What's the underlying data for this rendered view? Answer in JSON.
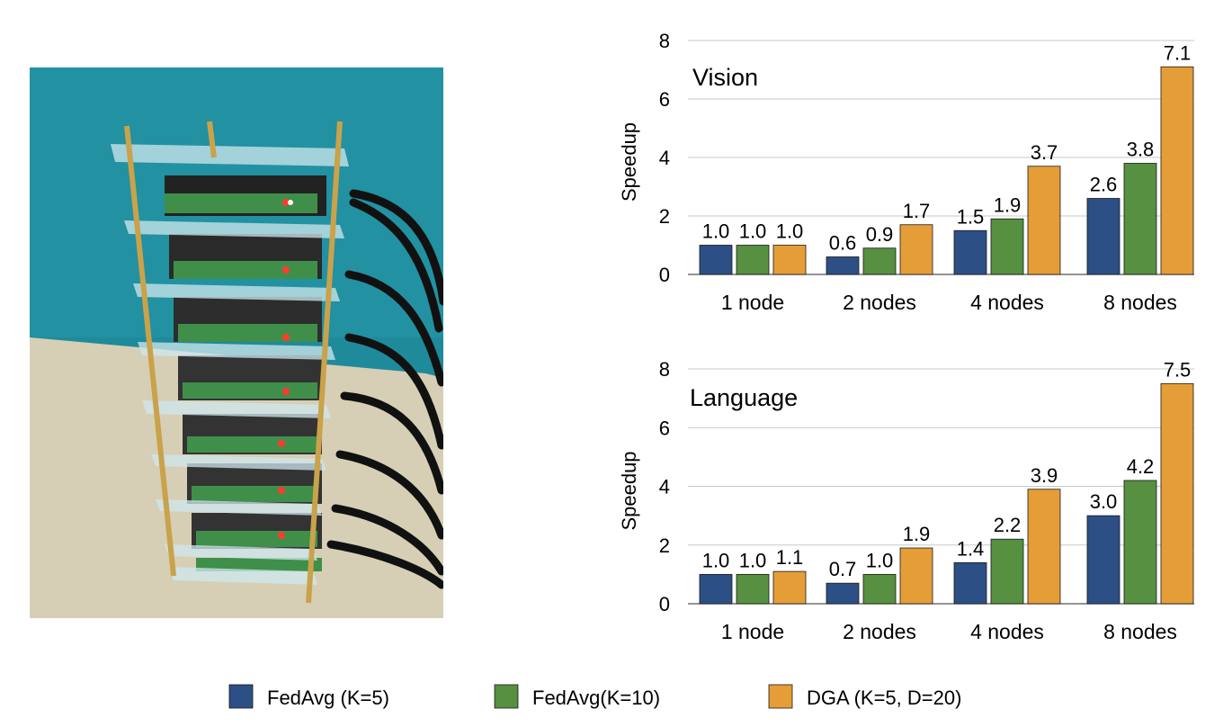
{
  "photo": {
    "description_icon": "raspberry-pi-cluster-photo",
    "bg_color": "#1f8a9a",
    "table_color": "#d6cfb6"
  },
  "colors": {
    "fedavg5": "#2c4f85",
    "fedavg10": "#569040",
    "dga": "#e59d38",
    "grid": "#c8c8c8"
  },
  "legend": {
    "items": [
      {
        "label": "FedAvg (K=5)",
        "color": "#2c4f85"
      },
      {
        "label": "FedAvg(K=10)",
        "color": "#569040"
      },
      {
        "label": "DGA (K=5, D=20)",
        "color": "#e59d38"
      }
    ]
  },
  "chart_data": [
    {
      "type": "bar",
      "title": "Vision",
      "ylabel": "Speedup",
      "ylim": [
        0,
        8
      ],
      "yticks": [
        0,
        2,
        4,
        6,
        8
      ],
      "grid": true,
      "categories": [
        "1 node",
        "2 nodes",
        "4 nodes",
        "8 nodes"
      ],
      "series": [
        {
          "name": "FedAvg (K=5)",
          "values": [
            1.0,
            0.6,
            1.5,
            2.6
          ],
          "labels": [
            "1.0",
            "0.6",
            "1.5",
            "2.6"
          ]
        },
        {
          "name": "FedAvg(K=10)",
          "values": [
            1.0,
            0.9,
            1.9,
            3.8
          ],
          "labels": [
            "1.0",
            "0.9",
            "1.9",
            "3.8"
          ]
        },
        {
          "name": "DGA (K=5, D=20)",
          "values": [
            1.0,
            1.7,
            3.7,
            7.1
          ],
          "labels": [
            "1.0",
            "1.7",
            "3.7",
            "7.1"
          ]
        }
      ]
    },
    {
      "type": "bar",
      "title": "Language",
      "ylabel": "Speedup",
      "ylim": [
        0,
        8
      ],
      "yticks": [
        0,
        2,
        4,
        6,
        8
      ],
      "grid": true,
      "categories": [
        "1 node",
        "2 nodes",
        "4 nodes",
        "8 nodes"
      ],
      "series": [
        {
          "name": "FedAvg (K=5)",
          "values": [
            1.0,
            0.7,
            1.4,
            3.0
          ],
          "labels": [
            "1.0",
            "0.7",
            "1.4",
            "3.0"
          ]
        },
        {
          "name": "FedAvg(K=10)",
          "values": [
            1.0,
            1.0,
            2.2,
            4.2
          ],
          "labels": [
            "1.0",
            "1.0",
            "2.2",
            "4.2"
          ]
        },
        {
          "name": "DGA (K=5, D=20)",
          "values": [
            1.1,
            1.9,
            3.9,
            7.5
          ],
          "labels": [
            "1.1",
            "1.9",
            "3.9",
            "7.5"
          ]
        }
      ]
    }
  ]
}
